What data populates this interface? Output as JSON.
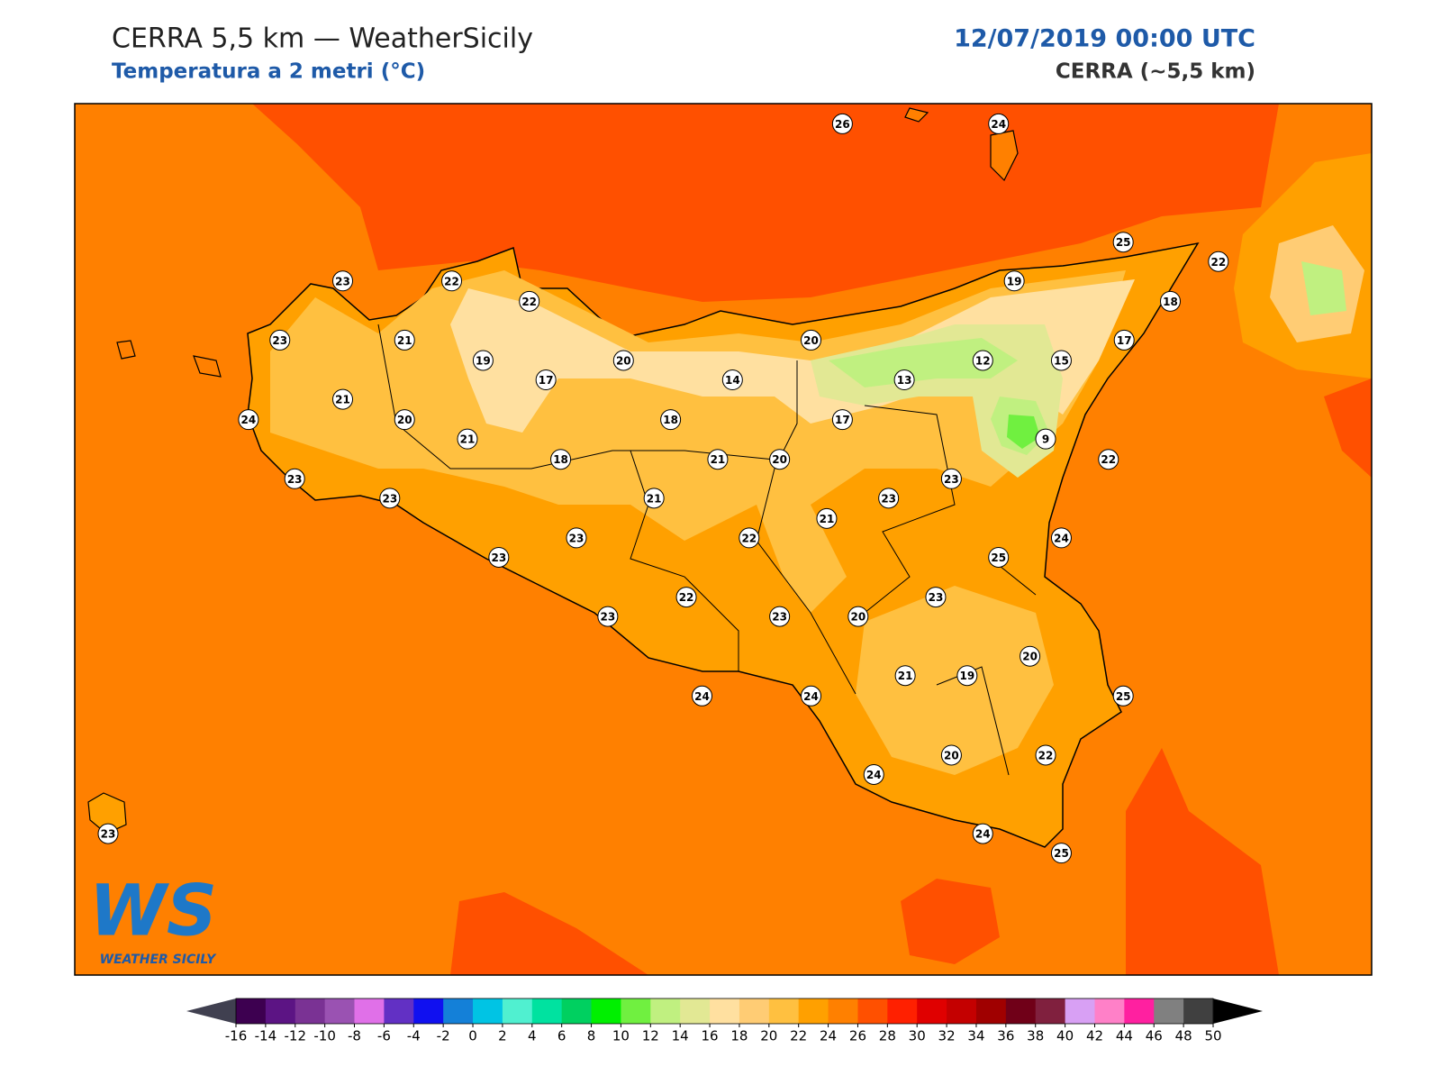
{
  "header": {
    "title": "CERRA 5,5 km — WeatherSicily",
    "subtitle": "Temperatura a 2 metri (°C)",
    "date": "12/07/2019 00:00 UTC",
    "model": "CERRA (~5,5 km)"
  },
  "stations": [
    26,
    24,
    25,
    22,
    19,
    18,
    23,
    22,
    22,
    23,
    21,
    19,
    20,
    20,
    17,
    12,
    15,
    17,
    14,
    13,
    21,
    24,
    20,
    18,
    17,
    9,
    21,
    18,
    21,
    20,
    22,
    23,
    23,
    23,
    21,
    23,
    21,
    23,
    22,
    24,
    23,
    25,
    22,
    23,
    23,
    23,
    20,
    20,
    21,
    19,
    24,
    24,
    25,
    20,
    22,
    24,
    24,
    25,
    23
  ],
  "colorbar": {
    "ticks": [
      -16,
      -14,
      -12,
      -10,
      -8,
      -6,
      -4,
      -2,
      0,
      2,
      4,
      6,
      8,
      10,
      12,
      14,
      16,
      18,
      20,
      22,
      24,
      26,
      28,
      30,
      32,
      34,
      36,
      38,
      40,
      42,
      44,
      46,
      48,
      50
    ],
    "colors": [
      "#3d0050",
      "#5c1484",
      "#7a3294",
      "#9a52b2",
      "#e070e8",
      "#6230c4",
      "#1010f0",
      "#1480d8",
      "#00c4e4",
      "#50f0d0",
      "#00e2a0",
      "#00d060",
      "#00f000",
      "#70f040",
      "#c0f080",
      "#e2e894",
      "#ffe0a0",
      "#ffcc74",
      "#ffc040",
      "#ffa000",
      "#ff8000",
      "#ff5000",
      "#ff2000",
      "#e00000",
      "#c40000",
      "#a00000",
      "#700018",
      "#80203e",
      "#d8a0f4",
      "#ff80c8",
      "#ff20a0",
      "#808080",
      "#404040"
    ],
    "under": "#404050",
    "over": "#000000"
  },
  "logo": {
    "mark": "WS",
    "text": "WEATHER SICILY"
  }
}
